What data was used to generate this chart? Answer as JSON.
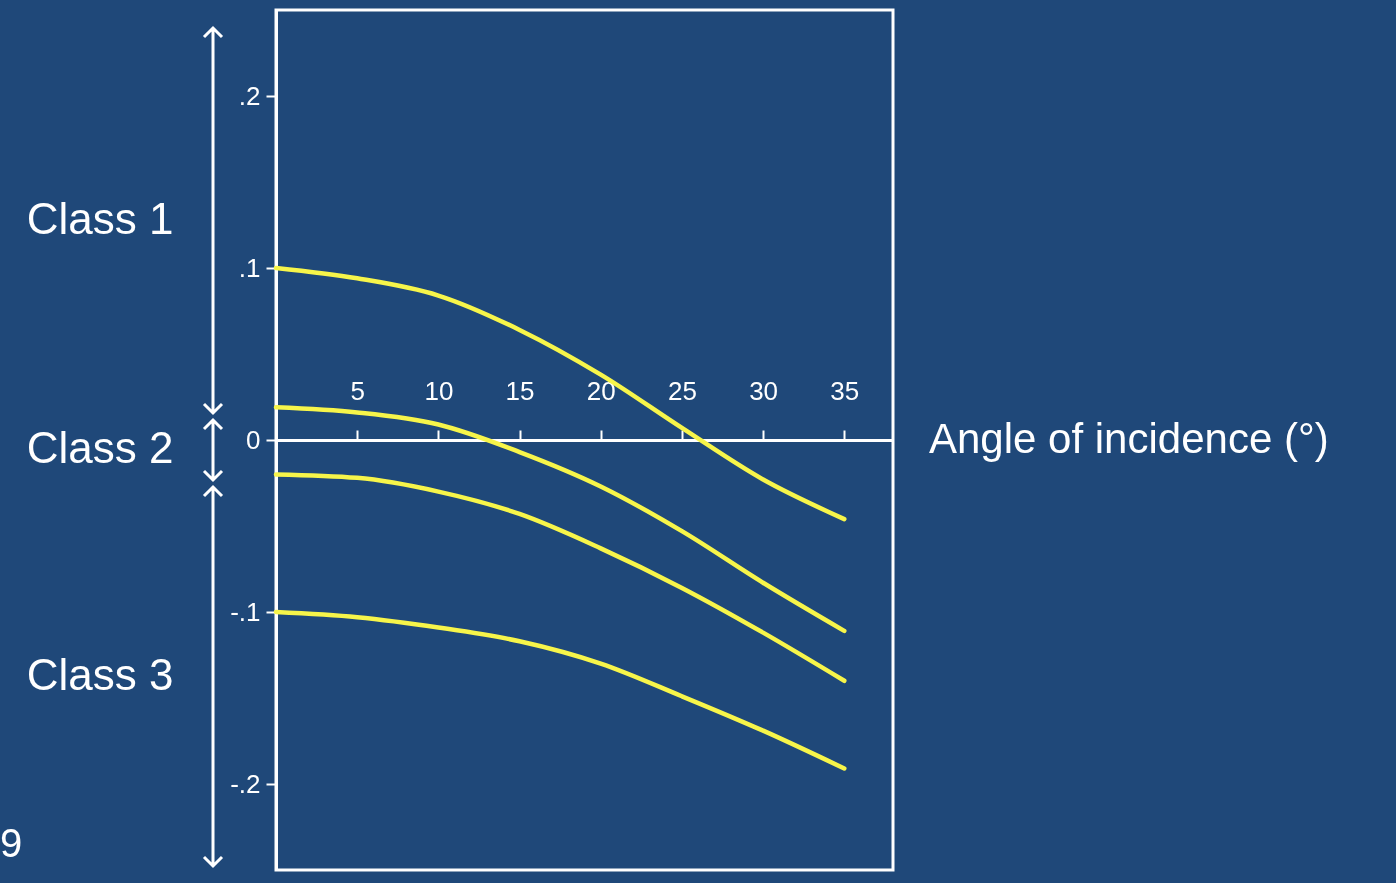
{
  "chart_data": {
    "type": "line",
    "xlabel": "Angle of incidence (°)",
    "x": [
      0,
      5,
      10,
      15,
      20,
      25,
      30,
      35
    ],
    "series": [
      {
        "color": "#f7f54a",
        "values": [
          0.1,
          0.094,
          0.084,
          0.064,
          0.038,
          0.007,
          -0.023,
          -0.046
        ]
      },
      {
        "color": "#f7f54a",
        "values": [
          0.019,
          0.016,
          0.009,
          -0.007,
          -0.027,
          -0.053,
          -0.083,
          -0.111
        ]
      },
      {
        "color": "#f7f54a",
        "values": [
          -0.02,
          -0.022,
          -0.03,
          -0.043,
          -0.063,
          -0.086,
          -0.112,
          -0.14
        ]
      },
      {
        "color": "#f7f54a",
        "values": [
          -0.1,
          -0.103,
          -0.109,
          -0.117,
          -0.13,
          -0.149,
          -0.169,
          -0.191
        ]
      }
    ],
    "xlim": [
      0,
      38
    ],
    "ylim": [
      -0.25,
      0.25
    ],
    "xticks": [
      5,
      10,
      15,
      20,
      25,
      30,
      35
    ],
    "yticks": [
      {
        "value": 0.2,
        "label": ".2"
      },
      {
        "value": 0.1,
        "label": ".1"
      },
      0,
      {
        "value": -0.1,
        "label": "-.1"
      },
      {
        "value": -0.2,
        "label": "-.2"
      }
    ],
    "annotations": [
      "Class 1",
      "Class 2",
      "Class 3",
      "9"
    ],
    "grid": false,
    "marker": "none",
    "line_style": "solid"
  }
}
